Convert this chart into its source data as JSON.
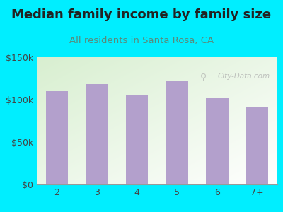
{
  "title": "Median family income by family size",
  "subtitle": "All residents in Santa Rosa, CA",
  "categories": [
    "2",
    "3",
    "4",
    "5",
    "6",
    "7+"
  ],
  "values": [
    110000,
    118000,
    106000,
    122000,
    102000,
    92000
  ],
  "bar_color": "#b3a0cc",
  "background_color": "#00eeff",
  "title_color": "#222222",
  "subtitle_color": "#5a8a7a",
  "tick_color": "#444444",
  "ylim": [
    0,
    150000
  ],
  "yticks": [
    0,
    50000,
    100000,
    150000
  ],
  "ytick_labels": [
    "$0",
    "$50k",
    "$100k",
    "$150k"
  ],
  "watermark": "City-Data.com",
  "title_fontsize": 13,
  "subtitle_fontsize": 9.5
}
